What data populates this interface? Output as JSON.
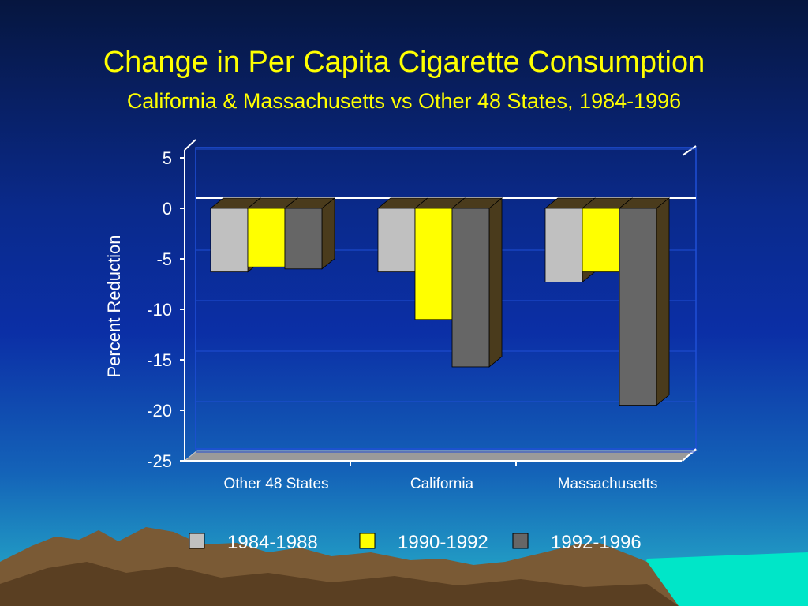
{
  "slide": {
    "title": "Change in Per Capita Cigarette Consumption",
    "subtitle": "California & Massachusetts vs Other 48 States, 1984-1996"
  },
  "colors": {
    "title": "#ffff00",
    "series": [
      "#c0c0c0",
      "#ffff00",
      "#666666"
    ],
    "bar_shadow": "#4a3b1c",
    "mountains": "#7a5a35",
    "sea": "#00e6c8"
  },
  "chart_data": {
    "type": "bar",
    "title": "",
    "xlabel": "",
    "ylabel": "Percent Reduction",
    "ylim": [
      -25,
      5
    ],
    "yticks": [
      5,
      0,
      -5,
      -10,
      -15,
      -20,
      -25
    ],
    "categories": [
      "Other 48 States",
      "California",
      "Massachusetts"
    ],
    "series": [
      {
        "name": "1984-1988",
        "values": [
          -6.3,
          -6.3,
          -7.3
        ]
      },
      {
        "name": "1990-1992",
        "values": [
          -5.8,
          -11.0,
          -6.3
        ]
      },
      {
        "name": "1992-1996",
        "values": [
          -6.0,
          -15.7,
          -19.5
        ]
      }
    ],
    "legend_position": "bottom",
    "grid": true
  }
}
